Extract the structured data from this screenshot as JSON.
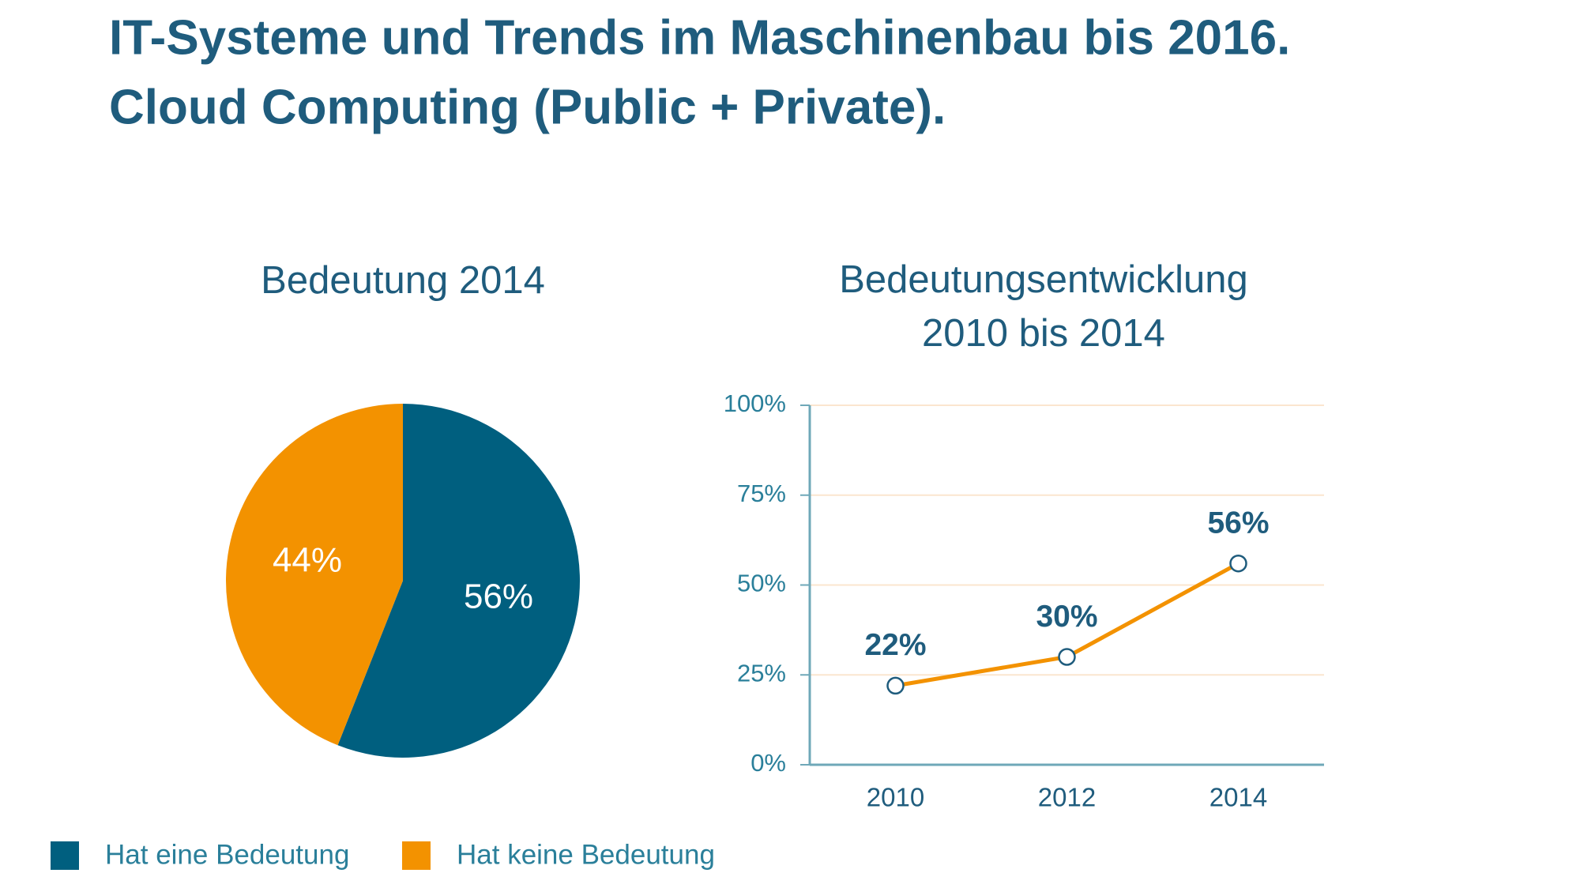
{
  "title": [
    "IT-Systeme und Trends im Maschinenbau bis 2016.",
    "Cloud Computing (Public + Private)."
  ],
  "chart_data": [
    {
      "type": "pie",
      "title": "Bedeutung 2014",
      "categories": [
        "Hat eine Bedeutung",
        "Hat keine Bedeutung"
      ],
      "values": [
        56,
        44
      ],
      "value_labels": [
        "56%",
        "44%"
      ],
      "colors": [
        "#005f7f",
        "#f39200"
      ]
    },
    {
      "type": "line",
      "title": [
        "Bedeutungsentwicklung",
        "2010 bis 2014"
      ],
      "categories": [
        "2010",
        "2012",
        "2014"
      ],
      "series": [
        {
          "color": "#f39200",
          "values": [
            22,
            30,
            56
          ],
          "value_labels": [
            "22%",
            "30%",
            "56%"
          ]
        }
      ],
      "ylim": [
        0,
        100
      ],
      "yticks": [
        {
          "value": 0,
          "label": "0%"
        },
        {
          "value": 25,
          "label": "25%"
        },
        {
          "value": 50,
          "label": "50%"
        },
        {
          "value": 75,
          "label": "75%"
        },
        {
          "value": 100,
          "label": "100%"
        }
      ],
      "grid": true
    }
  ]
}
